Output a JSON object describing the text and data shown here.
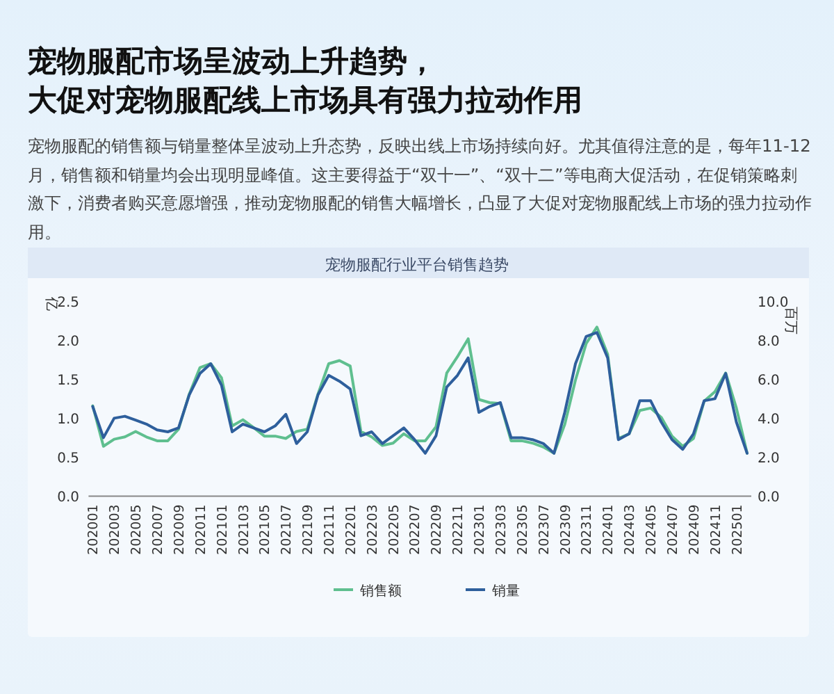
{
  "chart_data": {
    "type": "line",
    "title": "宠物服配市场呈波动上升趋势，大促对宠物服配线上市场具有强力拉动作用",
    "subtitle": "宠物服配的销售额与销量整体呈波动上升态势，反映出线上市场持续向好。尤其值得注意的是，每年11-12月，销售额和销量均会出现明显峰值。这主要得益于“双十一”、“双十二”等电商大促活动，在促销策略刺激下，消费者购买意愿增强，推动宠物服配的销售大幅增长，凸显了大促对宠物服配线上市场的强力拉动作用。",
    "annotations": [
      "宠物服配行业平台销售趋势"
    ],
    "ylabel": "亿",
    "y2label": "百万",
    "categories": [
      "202001",
      null,
      "202003",
      null,
      "202005",
      null,
      "202007",
      null,
      "202009",
      null,
      "202011",
      null,
      "202101",
      null,
      "202103",
      null,
      "202105",
      null,
      "202107",
      null,
      "202109",
      null,
      "202111",
      null,
      "202201",
      null,
      "202203",
      null,
      "202205",
      null,
      "202207",
      null,
      "202209",
      null,
      "202211",
      null,
      "202301",
      null,
      "202303",
      null,
      "202305",
      null,
      "202307",
      null,
      "202309",
      null,
      "202311",
      null,
      "202401",
      null,
      "202403",
      null,
      "202405",
      null,
      "202407",
      null,
      "202409",
      null,
      "202411",
      null,
      "202501",
      null
    ],
    "series": [
      {
        "name": "销售额",
        "color": "#5fbf8f",
        "values": [
          1.16,
          0.64,
          0.73,
          0.76,
          0.83,
          0.76,
          0.71,
          0.71,
          0.86,
          1.31,
          1.65,
          1.7,
          1.52,
          0.9,
          0.98,
          0.88,
          0.77,
          0.77,
          0.74,
          0.83,
          0.86,
          1.31,
          1.7,
          1.74,
          1.67,
          0.83,
          0.76,
          0.65,
          0.68,
          0.8,
          0.71,
          0.71,
          0.89,
          1.58,
          1.79,
          2.02,
          1.24,
          1.2,
          1.19,
          0.71,
          0.71,
          0.68,
          0.63,
          0.55,
          0.92,
          1.49,
          1.96,
          2.17,
          1.82,
          0.74,
          0.8,
          1.1,
          1.13,
          1.01,
          0.77,
          0.64,
          0.74,
          1.22,
          1.34,
          1.58,
          1.13,
          0.55
        ]
      },
      {
        "name": "销量",
        "color": "#2e5f9c",
        "axis": "y2",
        "values": [
          4.6,
          3.0,
          4.0,
          4.1,
          3.9,
          3.7,
          3.4,
          3.3,
          3.5,
          5.2,
          6.3,
          6.8,
          5.7,
          3.3,
          3.7,
          3.5,
          3.3,
          3.6,
          4.2,
          2.7,
          3.3,
          5.2,
          6.2,
          5.9,
          5.5,
          3.1,
          3.3,
          2.7,
          3.1,
          3.5,
          2.9,
          2.2,
          3.1,
          5.6,
          6.2,
          7.1,
          4.3,
          4.6,
          4.8,
          3.0,
          3.0,
          2.9,
          2.7,
          2.2,
          4.3,
          6.8,
          8.2,
          8.4,
          7.1,
          2.9,
          3.2,
          4.9,
          4.9,
          3.8,
          2.9,
          2.4,
          3.2,
          4.9,
          5.0,
          6.3,
          3.8,
          2.2
        ]
      }
    ],
    "ylim": [
      0,
      2.5
    ],
    "yticks": [
      {
        "value": 0,
        "label": "0.0"
      },
      {
        "value": 0.5,
        "label": "0.5"
      },
      {
        "value": 1,
        "label": "1.0"
      },
      {
        "value": 1.5,
        "label": "1.5"
      },
      {
        "value": 2,
        "label": "2.0"
      },
      {
        "value": 2.5,
        "label": "2.5"
      }
    ],
    "y2lim": [
      0,
      10
    ],
    "y2ticks": [
      {
        "value": 0,
        "label": "0.0"
      },
      {
        "value": 2,
        "label": "2.0"
      },
      {
        "value": 4,
        "label": "4.0"
      },
      {
        "value": 6,
        "label": "6.0"
      },
      {
        "value": 8,
        "label": "8.0"
      },
      {
        "value": 10,
        "label": "10.0"
      }
    ],
    "legend": "bottom",
    "marker": "none",
    "line_style": "solid",
    "grid": false
  }
}
